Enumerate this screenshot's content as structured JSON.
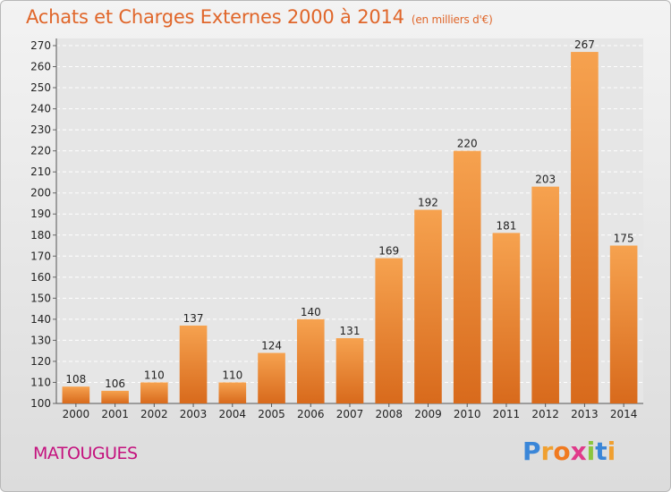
{
  "title": "Achats et Charges Externes 2000 à 2014",
  "subtitle": "(en milliers d'€)",
  "commune": "MATOUGUES",
  "logo": {
    "letters": [
      "P",
      "r",
      "o",
      "x",
      "i",
      "t",
      "i"
    ],
    "colors": [
      "#3a86d8",
      "#f0a030",
      "#f07a20",
      "#e03a8a",
      "#8cc63e",
      "#3a86d8",
      "#f0a030"
    ]
  },
  "colors": {
    "bar_light": "#f6a24f",
    "bar_dark": "#d86a1c",
    "title": "#e0662a",
    "commune": "#c4127e"
  },
  "chart_data": {
    "type": "bar",
    "title": "Achats et Charges Externes 2000 à 2014",
    "categories": [
      "2000",
      "2001",
      "2002",
      "2003",
      "2004",
      "2005",
      "2006",
      "2007",
      "2008",
      "2009",
      "2010",
      "2011",
      "2012",
      "2013",
      "2014"
    ],
    "values": [
      108,
      106,
      110,
      137,
      110,
      124,
      140,
      131,
      169,
      192,
      220,
      181,
      203,
      267,
      175
    ],
    "ylim": [
      100,
      270
    ],
    "yticks": [
      100,
      110,
      120,
      130,
      140,
      150,
      160,
      170,
      180,
      190,
      200,
      210,
      220,
      230,
      240,
      250,
      260,
      270
    ],
    "grid": true,
    "legend": "none",
    "data_labels": true
  }
}
